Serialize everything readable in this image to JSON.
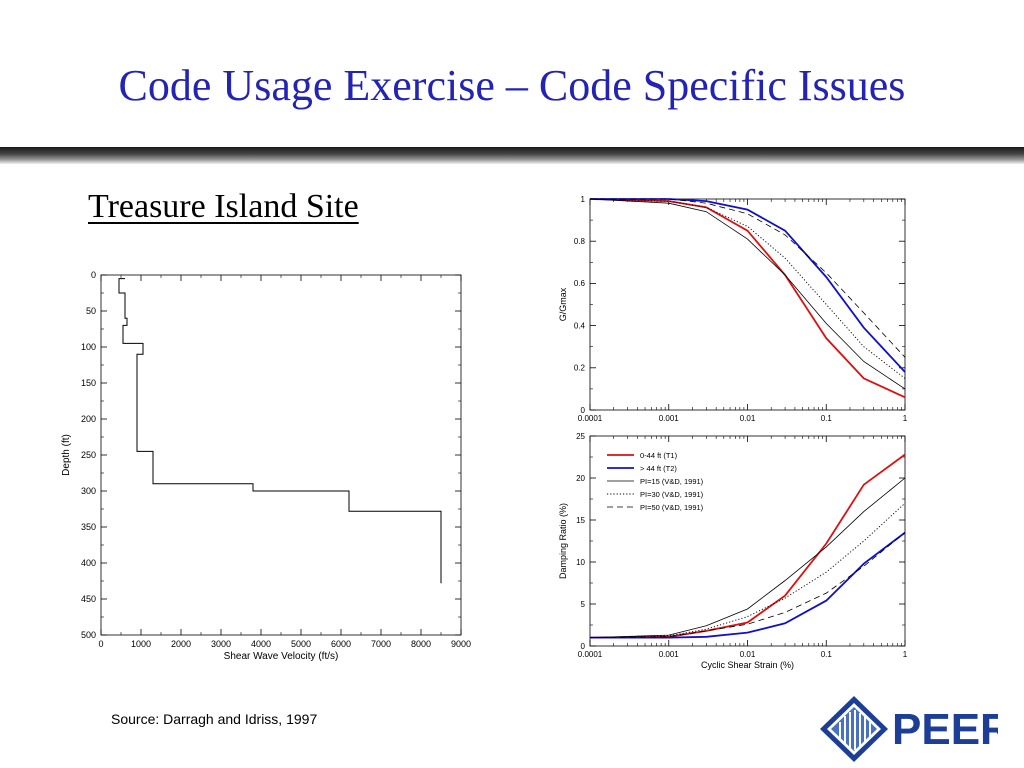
{
  "slide": {
    "title": "Code Usage Exercise – Code Specific Issues",
    "subtitle": "Treasure Island Site",
    "source": "Source: Darragh and Idriss, 1997",
    "logo_text": "PEER"
  },
  "colors": {
    "title": "#2323b4",
    "red": "#dd1010",
    "blue": "#1010cc",
    "logo": "#1d3e96"
  },
  "chart_data": [
    {
      "type": "line",
      "xlabel": "Shear Wave Velocity (ft/s)",
      "ylabel": "Depth (ft)",
      "xlim": [
        0,
        9000
      ],
      "ylim": [
        0,
        500
      ],
      "y_inverted": true,
      "x_ticks": [
        0,
        1000,
        2000,
        3000,
        4000,
        5000,
        6000,
        7000,
        8000,
        9000
      ],
      "y_ticks": [
        0,
        50,
        100,
        150,
        200,
        250,
        300,
        350,
        400,
        450,
        500
      ],
      "series": [
        {
          "x": [
            600,
            450,
            450,
            600,
            600,
            650,
            650,
            550,
            550,
            1050,
            1050,
            900,
            900,
            1300,
            1300,
            3800,
            3800,
            6200,
            6200,
            8500,
            8500
          ],
          "y": [
            5,
            5,
            25,
            25,
            60,
            60,
            70,
            70,
            95,
            95,
            110,
            110,
            245,
            245,
            290,
            290,
            300,
            300,
            328,
            328,
            428
          ]
        }
      ]
    },
    {
      "type": "line",
      "xlabel": "",
      "ylabel": "G/Gmax",
      "xscale": "log",
      "xlim": [
        0.0001,
        1
      ],
      "ylim": [
        0,
        1
      ],
      "x_ticks": [
        0.0001,
        0.001,
        0.01,
        0.1,
        1
      ],
      "x_tick_labels": [
        "0.0001",
        "0.001",
        "0.01",
        "0.1",
        "1"
      ],
      "y_ticks": [
        0,
        0.2,
        0.4,
        0.6,
        0.8,
        1
      ],
      "y_tick_labels": [
        "0",
        "0.2",
        "0.4",
        "0.6",
        "0.8",
        "1"
      ],
      "series": [
        {
          "name": "0-44 ft (T1)",
          "style": "red",
          "x": [
            0.0001,
            0.001,
            0.003,
            0.01,
            0.03,
            0.1,
            0.3,
            1
          ],
          "y": [
            1,
            0.99,
            0.96,
            0.85,
            0.64,
            0.34,
            0.15,
            0.06
          ]
        },
        {
          "name": "> 44 ft (T2)",
          "style": "blue",
          "x": [
            0.0001,
            0.001,
            0.003,
            0.01,
            0.03,
            0.1,
            0.3,
            1
          ],
          "y": [
            1,
            1,
            0.99,
            0.95,
            0.85,
            0.63,
            0.39,
            0.18
          ]
        },
        {
          "name": "PI=15 (V&D, 1991)",
          "style": "solid",
          "x": [
            0.0001,
            0.001,
            0.003,
            0.01,
            0.03,
            0.1,
            0.3,
            1
          ],
          "y": [
            1,
            0.98,
            0.94,
            0.81,
            0.64,
            0.41,
            0.23,
            0.1
          ]
        },
        {
          "name": "PI=30 (V&D, 1991)",
          "style": "dotted",
          "x": [
            0.0001,
            0.001,
            0.003,
            0.01,
            0.03,
            0.1,
            0.3,
            1
          ],
          "y": [
            1,
            0.99,
            0.96,
            0.87,
            0.72,
            0.5,
            0.3,
            0.15
          ]
        },
        {
          "name": "PI=50 (V&D, 1991)",
          "style": "dashed",
          "x": [
            0.0001,
            0.001,
            0.003,
            0.01,
            0.03,
            0.1,
            0.3,
            1
          ],
          "y": [
            1,
            1,
            0.98,
            0.93,
            0.83,
            0.65,
            0.46,
            0.25
          ]
        }
      ]
    },
    {
      "type": "line",
      "xlabel": "Cyclic Shear Strain (%)",
      "ylabel": "Damping Ratio (%)",
      "xscale": "log",
      "xlim": [
        0.0001,
        1
      ],
      "ylim": [
        0,
        25
      ],
      "x_ticks": [
        0.0001,
        0.001,
        0.01,
        0.1,
        1
      ],
      "x_tick_labels": [
        "0.0001",
        "0.001",
        "0.01",
        "0.1",
        "1"
      ],
      "y_ticks": [
        0,
        5,
        10,
        15,
        20,
        25
      ],
      "y_tick_labels": [
        "0",
        "5",
        "10",
        "15",
        "20",
        "25"
      ],
      "legend_position": "top-left",
      "series": [
        {
          "name": "0-44 ft (T1)",
          "style": "red",
          "x": [
            0.0001,
            0.001,
            0.003,
            0.01,
            0.03,
            0.1,
            0.3,
            1
          ],
          "y": [
            1,
            1.1,
            1.8,
            2.8,
            6,
            12.2,
            19.2,
            22.8
          ]
        },
        {
          "name": "> 44 ft (T2)",
          "style": "blue",
          "x": [
            0.0001,
            0.001,
            0.003,
            0.01,
            0.03,
            0.1,
            0.3,
            1
          ],
          "y": [
            1,
            1,
            1.1,
            1.6,
            2.7,
            5.4,
            9.8,
            13.5
          ]
        },
        {
          "name": "PI=15 (V&D, 1991)",
          "style": "solid",
          "x": [
            0.0001,
            0.001,
            0.003,
            0.01,
            0.03,
            0.1,
            0.3,
            1
          ],
          "y": [
            1,
            1.3,
            2.4,
            4.4,
            7.8,
            11.8,
            16,
            20
          ]
        },
        {
          "name": "PI=30 (V&D, 1991)",
          "style": "dotted",
          "x": [
            0.0001,
            0.001,
            0.003,
            0.01,
            0.03,
            0.1,
            0.3,
            1
          ],
          "y": [
            1,
            1.2,
            2,
            3.5,
            5.7,
            8.8,
            12.5,
            17
          ]
        },
        {
          "name": "PI=50 (V&D, 1991)",
          "style": "dashed",
          "x": [
            0.0001,
            0.001,
            0.003,
            0.01,
            0.03,
            0.1,
            0.3,
            1
          ],
          "y": [
            1,
            1.1,
            1.8,
            2.6,
            4,
            6.3,
            9.5,
            13.5
          ]
        }
      ]
    }
  ]
}
